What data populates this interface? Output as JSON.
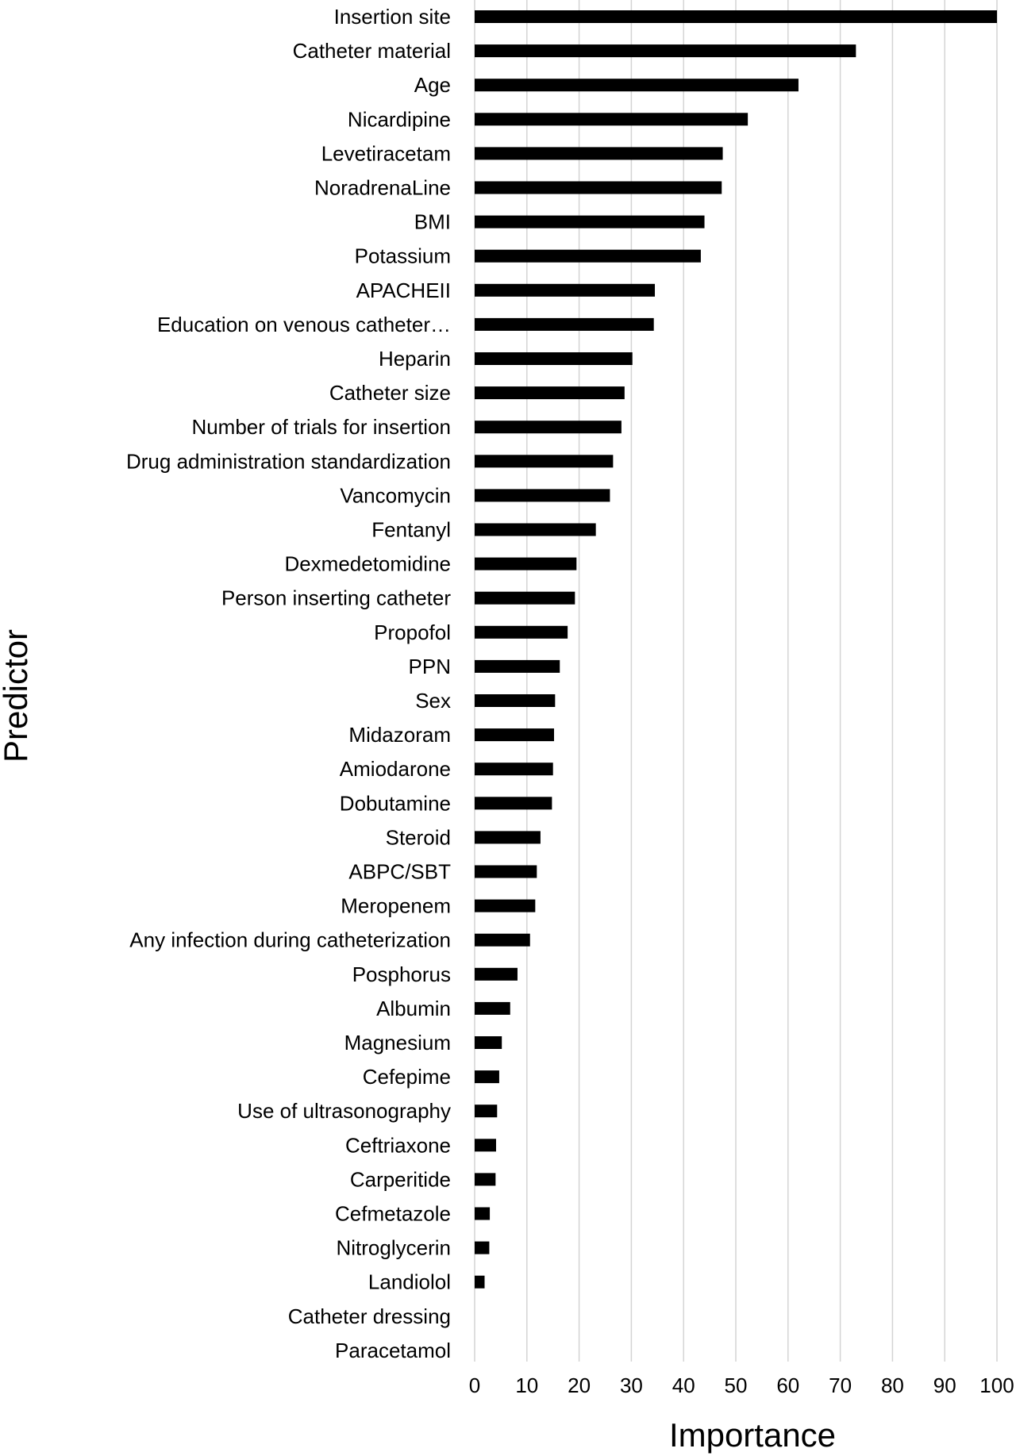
{
  "chart_data": {
    "type": "bar",
    "orientation": "horizontal",
    "title": "",
    "xlabel": "Importance",
    "ylabel": "Predictor",
    "xlim": [
      0,
      100
    ],
    "xticks": [
      0,
      10,
      20,
      30,
      40,
      50,
      60,
      70,
      80,
      90,
      100
    ],
    "grid": "vertical lines",
    "legend": "none",
    "bar_color": "#000000",
    "grid_color": "#d4d4d4",
    "categories": [
      "Insertion site",
      "Catheter material",
      "Age",
      "Nicardipine",
      "Levetiracetam",
      "NoradrenaLine",
      "BMI",
      "Potassium",
      "APACHEII",
      "Education on venous catheter…",
      "Heparin",
      "Catheter size",
      "Number of trials for insertion",
      "Drug administration standardization",
      "Vancomycin",
      "Fentanyl",
      "Dexmedetomidine",
      "Person inserting catheter",
      "Propofol",
      "PPN",
      "Sex",
      "Midazoram",
      "Amiodarone",
      "Dobutamine",
      "Steroid",
      "ABPC/SBT",
      "Meropenem",
      "Any infection during catheterization",
      "Posphorus",
      "Albumin",
      "Magnesium",
      "Cefepime",
      "Use of ultrasonography",
      "Ceftriaxone",
      "Carperitide",
      "Cefmetazole",
      "Nitroglycerin",
      "Landiolol",
      "Catheter dressing",
      "Paracetamol"
    ],
    "values": [
      100,
      73,
      62,
      52.3,
      47.5,
      47.3,
      44,
      43.3,
      34.5,
      34.3,
      30.2,
      28.7,
      28.1,
      26.5,
      25.9,
      23.2,
      19.5,
      19.2,
      17.8,
      16.3,
      15.4,
      15.2,
      15,
      14.8,
      12.6,
      11.9,
      11.6,
      10.6,
      8.2,
      6.8,
      5.2,
      4.7,
      4.3,
      4.1,
      4,
      2.9,
      2.8,
      1.9,
      0,
      0
    ]
  }
}
